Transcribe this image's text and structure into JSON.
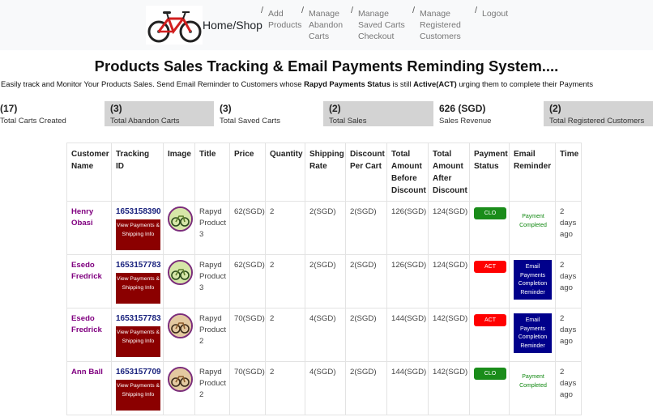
{
  "nav": {
    "brand": "Home/Shop",
    "links": [
      {
        "label": "Add Products"
      },
      {
        "label": "Manage Abandon Carts"
      },
      {
        "label": "Manage Saved Carts Checkout"
      },
      {
        "label": "Manage Registered Customers"
      },
      {
        "label": "Logout"
      }
    ],
    "slash": "/",
    "logo_icon": "bicycle-icon"
  },
  "header": {
    "title": "Products Sales Tracking & Email Payments Reminding System....",
    "subtitle_part1": "Easily track and Monitor Your Products Sales. Send Email Reminder to Customers whose ",
    "subtitle_bold1": "Rapyd Payments Status",
    "subtitle_part2": " is still ",
    "subtitle_bold2": "Active(ACT)",
    "subtitle_part3": " urging them to complete their Payments"
  },
  "stats": [
    {
      "value": "(17)",
      "label": "Total Carts Created"
    },
    {
      "value": "(3)",
      "label": "Total Abandon Carts"
    },
    {
      "value": "(3)",
      "label": "Total Saved Carts"
    },
    {
      "value": "(2)",
      "label": "Total Sales"
    },
    {
      "value": "626 (SGD)",
      "label": "Sales Revenue"
    },
    {
      "value": "(2)",
      "label": "Total Registered Customers"
    }
  ],
  "table": {
    "headers": [
      "Customer Name",
      "Tracking ID",
      "Image",
      "Title",
      "Price",
      "Quantity",
      "Shipping Rate",
      "Discount Per Cart",
      "Total Amount Before Discount",
      "Total Amount After Discount",
      "Payment Status",
      "Email Reminder",
      "Time"
    ],
    "view_button_label": "View Payments & Shipping Info",
    "rows": [
      {
        "customer": "Henry Obasi",
        "tracking": "1653158390",
        "title": "Rapyd Product 3",
        "price": "62(SGD)",
        "qty": "2",
        "shipping": "2(SGD)",
        "discount": "2(SGD)",
        "before": "126(SGD)",
        "after": "124(SGD)",
        "status": "CLO",
        "reminder": "Payment Completed",
        "time": "2 days ago"
      },
      {
        "customer": "Esedo Fredrick",
        "tracking": "1653157783",
        "title": "Rapyd Product 3",
        "price": "62(SGD)",
        "qty": "2",
        "shipping": "2(SGD)",
        "discount": "2(SGD)",
        "before": "126(SGD)",
        "after": "124(SGD)",
        "status": "ACT",
        "reminder": "Email Payments Completion Reminder",
        "time": "2 days ago"
      },
      {
        "customer": "Esedo Fredrick",
        "tracking": "1653157783",
        "title": "Rapyd Product 2",
        "price": "70(SGD)",
        "qty": "2",
        "shipping": "4(SGD)",
        "discount": "2(SGD)",
        "before": "144(SGD)",
        "after": "142(SGD)",
        "status": "ACT",
        "reminder": "Email Payments Completion Reminder",
        "time": "2 days ago"
      },
      {
        "customer": "Ann Ball",
        "tracking": "1653157709",
        "title": "Rapyd Product 2",
        "price": "70(SGD)",
        "qty": "2",
        "shipping": "4(SGD)",
        "discount": "2(SGD)",
        "before": "144(SGD)",
        "after": "142(SGD)",
        "status": "CLO",
        "reminder": "Payment Completed",
        "time": "2 days ago"
      }
    ]
  },
  "colors": {
    "status_clo": "#1a8c1a",
    "status_act": "#ff0000",
    "reminder_button": "#00008b",
    "view_button": "#8b0000",
    "customer_name": "#800080"
  }
}
